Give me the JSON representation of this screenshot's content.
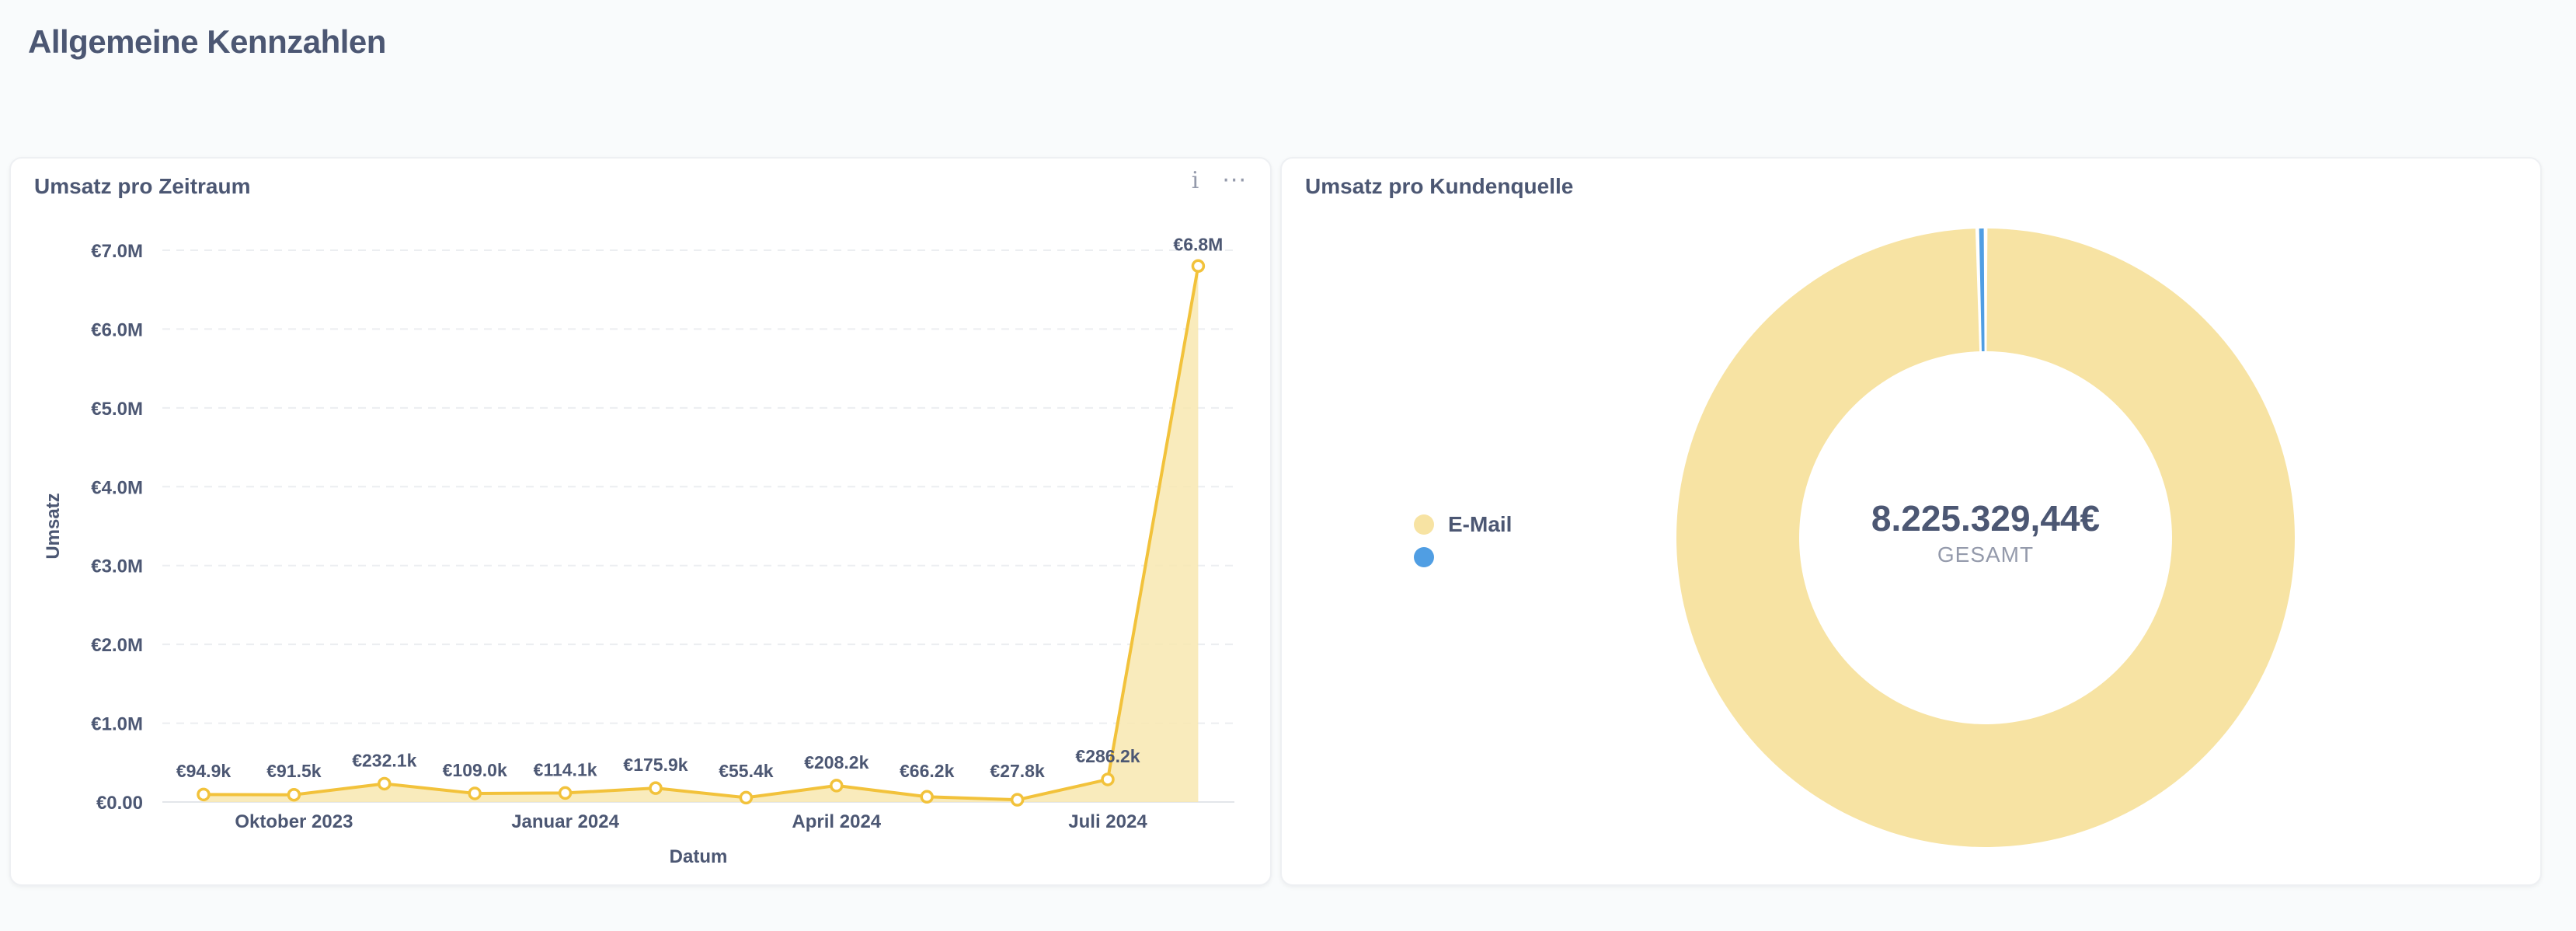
{
  "page": {
    "title": "Allgemeine Kennzahlen"
  },
  "cards": {
    "revenue_over_time": {
      "title": "Umsatz pro Zeitraum",
      "info_icon": "info-icon",
      "menu_icon": "more-horizontal-icon"
    },
    "revenue_by_source": {
      "title": "Umsatz pro Kundenquelle",
      "total": "8.225.329,44€",
      "total_caption": "GESAMT",
      "legend": [
        {
          "label": "E-Mail",
          "color": "#f7e3a3"
        },
        {
          "label": "",
          "color": "#509ee3"
        }
      ]
    }
  },
  "chart_data": [
    {
      "type": "area",
      "title": "Umsatz pro Zeitraum",
      "xlabel": "Datum",
      "ylabel": "Umsatz",
      "x": [
        "2023-09",
        "2023-10",
        "2023-11",
        "2023-12",
        "2024-01",
        "2024-02",
        "2024-03",
        "2024-04",
        "2024-05",
        "2024-06",
        "2024-07",
        "2024-08"
      ],
      "x_tick_labels": [
        {
          "x": "2023-10",
          "label": "Oktober 2023"
        },
        {
          "x": "2024-01",
          "label": "Januar 2024"
        },
        {
          "x": "2024-04",
          "label": "April 2024"
        },
        {
          "x": "2024-07",
          "label": "Juli 2024"
        }
      ],
      "values": [
        94900,
        91500,
        232100,
        109000,
        114100,
        175900,
        55400,
        208200,
        66200,
        27800,
        286200,
        6800000
      ],
      "data_labels": [
        "€94.9k",
        "€91.5k",
        "€232.1k",
        "€109.0k",
        "€114.1k",
        "€175.9k",
        "€55.4k",
        "€208.2k",
        "€66.2k",
        "€27.8k",
        "€286.2k",
        "€6.8M"
      ],
      "y_ticks": [
        {
          "value": 0,
          "label": "€0.00"
        },
        {
          "value": 1000000,
          "label": "€1.0M"
        },
        {
          "value": 2000000,
          "label": "€2.0M"
        },
        {
          "value": 3000000,
          "label": "€3.0M"
        },
        {
          "value": 4000000,
          "label": "€4.0M"
        },
        {
          "value": 5000000,
          "label": "€5.0M"
        },
        {
          "value": 6000000,
          "label": "€6.0M"
        },
        {
          "value": 7000000,
          "label": "€7.0M"
        }
      ],
      "ylim": [
        0,
        7000000
      ],
      "grid": true,
      "line_color": "#f2c23b",
      "fill_color": "#f8e7b0"
    },
    {
      "type": "pie",
      "title": "Umsatz pro Kundenquelle",
      "categories": [
        "E-Mail",
        ""
      ],
      "values": [
        8190000,
        35329.44
      ],
      "colors": [
        "#f7e3a3",
        "#509ee3"
      ],
      "total": 8225329.44
    }
  ]
}
